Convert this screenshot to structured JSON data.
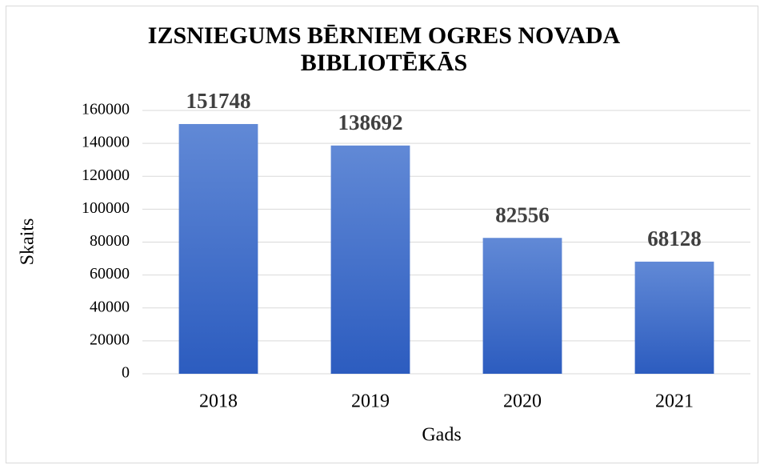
{
  "chart_data": {
    "type": "bar",
    "title": "IZSNIEGUMS BĒRNIEM OGRES NOVADA BIBLIOTĒKĀS",
    "x_label": "Gads",
    "y_label": "Skaits",
    "categories": [
      "2018",
      "2019",
      "2020",
      "2021"
    ],
    "values": [
      151748,
      138692,
      82556,
      68128
    ],
    "color": "#4472c4",
    "ylim": [
      0,
      160000
    ],
    "yticks": [
      0,
      20000,
      40000,
      60000,
      80000,
      100000,
      120000,
      140000,
      160000
    ],
    "grid": true
  }
}
